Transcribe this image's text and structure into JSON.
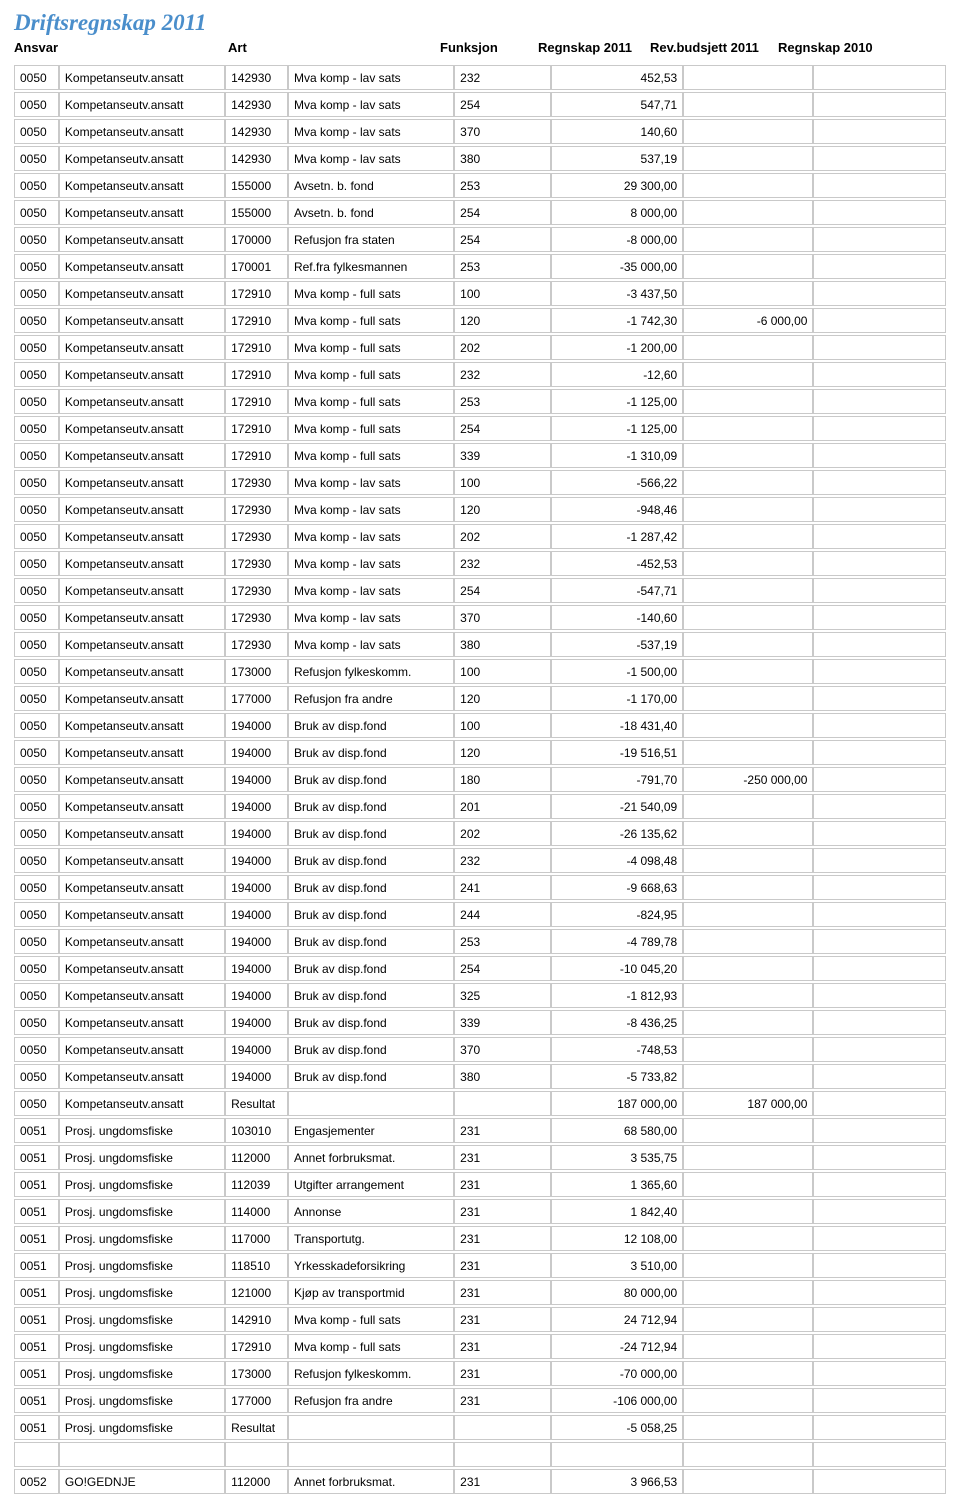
{
  "title": "Driftsregnskap 2011",
  "headers": {
    "ansvar": "Ansvar",
    "art": "Art",
    "funksjon": "Funksjon",
    "regnskap2011": "Regnskap 2011",
    "revbudsjett2011": "Rev.budsjett 2011",
    "regnskap2010": "Regnskap 2010"
  },
  "style": {
    "title_color": "#4a8ecb",
    "border_color": "#c9c9c9",
    "font_family": "Arial",
    "title_font_family": "Times New Roman",
    "title_fontsize": 23,
    "body_fontsize": 12
  },
  "columns": [
    "code",
    "ansvar",
    "art",
    "artdesc",
    "funk",
    "regnskap2011",
    "revbudsjett2011",
    "regnskap2010"
  ],
  "rows": [
    [
      "0050",
      "Kompetanseutv.ansatt",
      "142930",
      "Mva komp - lav sats",
      "232",
      "452,53",
      "",
      ""
    ],
    [
      "0050",
      "Kompetanseutv.ansatt",
      "142930",
      "Mva komp - lav sats",
      "254",
      "547,71",
      "",
      ""
    ],
    [
      "0050",
      "Kompetanseutv.ansatt",
      "142930",
      "Mva komp - lav sats",
      "370",
      "140,60",
      "",
      ""
    ],
    [
      "0050",
      "Kompetanseutv.ansatt",
      "142930",
      "Mva komp - lav sats",
      "380",
      "537,19",
      "",
      ""
    ],
    [
      "0050",
      "Kompetanseutv.ansatt",
      "155000",
      "Avsetn. b. fond",
      "253",
      "29 300,00",
      "",
      ""
    ],
    [
      "0050",
      "Kompetanseutv.ansatt",
      "155000",
      "Avsetn. b. fond",
      "254",
      "8 000,00",
      "",
      ""
    ],
    [
      "0050",
      "Kompetanseutv.ansatt",
      "170000",
      "Refusjon fra staten",
      "254",
      "-8 000,00",
      "",
      ""
    ],
    [
      "0050",
      "Kompetanseutv.ansatt",
      "170001",
      "Ref.fra fylkesmannen",
      "253",
      "-35 000,00",
      "",
      ""
    ],
    [
      "0050",
      "Kompetanseutv.ansatt",
      "172910",
      "Mva komp - full sats",
      "100",
      "-3 437,50",
      "",
      ""
    ],
    [
      "0050",
      "Kompetanseutv.ansatt",
      "172910",
      "Mva komp - full sats",
      "120",
      "-1 742,30",
      "-6 000,00",
      ""
    ],
    [
      "0050",
      "Kompetanseutv.ansatt",
      "172910",
      "Mva komp - full sats",
      "202",
      "-1 200,00",
      "",
      ""
    ],
    [
      "0050",
      "Kompetanseutv.ansatt",
      "172910",
      "Mva komp - full sats",
      "232",
      "-12,60",
      "",
      ""
    ],
    [
      "0050",
      "Kompetanseutv.ansatt",
      "172910",
      "Mva komp - full sats",
      "253",
      "-1 125,00",
      "",
      ""
    ],
    [
      "0050",
      "Kompetanseutv.ansatt",
      "172910",
      "Mva komp - full sats",
      "254",
      "-1 125,00",
      "",
      ""
    ],
    [
      "0050",
      "Kompetanseutv.ansatt",
      "172910",
      "Mva komp - full sats",
      "339",
      "-1 310,09",
      "",
      ""
    ],
    [
      "0050",
      "Kompetanseutv.ansatt",
      "172930",
      "Mva komp - lav sats",
      "100",
      "-566,22",
      "",
      ""
    ],
    [
      "0050",
      "Kompetanseutv.ansatt",
      "172930",
      "Mva komp - lav sats",
      "120",
      "-948,46",
      "",
      ""
    ],
    [
      "0050",
      "Kompetanseutv.ansatt",
      "172930",
      "Mva komp - lav sats",
      "202",
      "-1 287,42",
      "",
      ""
    ],
    [
      "0050",
      "Kompetanseutv.ansatt",
      "172930",
      "Mva komp - lav sats",
      "232",
      "-452,53",
      "",
      ""
    ],
    [
      "0050",
      "Kompetanseutv.ansatt",
      "172930",
      "Mva komp - lav sats",
      "254",
      "-547,71",
      "",
      ""
    ],
    [
      "0050",
      "Kompetanseutv.ansatt",
      "172930",
      "Mva komp - lav sats",
      "370",
      "-140,60",
      "",
      ""
    ],
    [
      "0050",
      "Kompetanseutv.ansatt",
      "172930",
      "Mva komp - lav sats",
      "380",
      "-537,19",
      "",
      ""
    ],
    [
      "0050",
      "Kompetanseutv.ansatt",
      "173000",
      "Refusjon fylkeskomm.",
      "100",
      "-1 500,00",
      "",
      ""
    ],
    [
      "0050",
      "Kompetanseutv.ansatt",
      "177000",
      "Refusjon fra andre",
      "120",
      "-1 170,00",
      "",
      ""
    ],
    [
      "0050",
      "Kompetanseutv.ansatt",
      "194000",
      "Bruk av disp.fond",
      "100",
      "-18 431,40",
      "",
      ""
    ],
    [
      "0050",
      "Kompetanseutv.ansatt",
      "194000",
      "Bruk av disp.fond",
      "120",
      "-19 516,51",
      "",
      ""
    ],
    [
      "0050",
      "Kompetanseutv.ansatt",
      "194000",
      "Bruk av disp.fond",
      "180",
      "-791,70",
      "-250 000,00",
      ""
    ],
    [
      "0050",
      "Kompetanseutv.ansatt",
      "194000",
      "Bruk av disp.fond",
      "201",
      "-21 540,09",
      "",
      ""
    ],
    [
      "0050",
      "Kompetanseutv.ansatt",
      "194000",
      "Bruk av disp.fond",
      "202",
      "-26 135,62",
      "",
      ""
    ],
    [
      "0050",
      "Kompetanseutv.ansatt",
      "194000",
      "Bruk av disp.fond",
      "232",
      "-4 098,48",
      "",
      ""
    ],
    [
      "0050",
      "Kompetanseutv.ansatt",
      "194000",
      "Bruk av disp.fond",
      "241",
      "-9 668,63",
      "",
      ""
    ],
    [
      "0050",
      "Kompetanseutv.ansatt",
      "194000",
      "Bruk av disp.fond",
      "244",
      "-824,95",
      "",
      ""
    ],
    [
      "0050",
      "Kompetanseutv.ansatt",
      "194000",
      "Bruk av disp.fond",
      "253",
      "-4 789,78",
      "",
      ""
    ],
    [
      "0050",
      "Kompetanseutv.ansatt",
      "194000",
      "Bruk av disp.fond",
      "254",
      "-10 045,20",
      "",
      ""
    ],
    [
      "0050",
      "Kompetanseutv.ansatt",
      "194000",
      "Bruk av disp.fond",
      "325",
      "-1 812,93",
      "",
      ""
    ],
    [
      "0050",
      "Kompetanseutv.ansatt",
      "194000",
      "Bruk av disp.fond",
      "339",
      "-8 436,25",
      "",
      ""
    ],
    [
      "0050",
      "Kompetanseutv.ansatt",
      "194000",
      "Bruk av disp.fond",
      "370",
      "-748,53",
      "",
      ""
    ],
    [
      "0050",
      "Kompetanseutv.ansatt",
      "194000",
      "Bruk av disp.fond",
      "380",
      "-5 733,82",
      "",
      ""
    ],
    [
      "0050",
      "Kompetanseutv.ansatt",
      "Resultat",
      "",
      "",
      "187 000,00",
      "187 000,00",
      ""
    ],
    [
      "0051",
      "Prosj. ungdomsfiske",
      "103010",
      "Engasjementer",
      "231",
      "68 580,00",
      "",
      ""
    ],
    [
      "0051",
      "Prosj. ungdomsfiske",
      "112000",
      "Annet forbruksmat.",
      "231",
      "3 535,75",
      "",
      ""
    ],
    [
      "0051",
      "Prosj. ungdomsfiske",
      "112039",
      "Utgifter arrangement",
      "231",
      "1 365,60",
      "",
      ""
    ],
    [
      "0051",
      "Prosj. ungdomsfiske",
      "114000",
      "Annonse",
      "231",
      "1 842,40",
      "",
      ""
    ],
    [
      "0051",
      "Prosj. ungdomsfiske",
      "117000",
      "Transportutg.",
      "231",
      "12 108,00",
      "",
      ""
    ],
    [
      "0051",
      "Prosj. ungdomsfiske",
      "118510",
      "Yrkesskadeforsikring",
      "231",
      "3 510,00",
      "",
      ""
    ],
    [
      "0051",
      "Prosj. ungdomsfiske",
      "121000",
      "Kjøp av transportmid",
      "231",
      "80 000,00",
      "",
      ""
    ],
    [
      "0051",
      "Prosj. ungdomsfiske",
      "142910",
      "Mva komp - full sats",
      "231",
      "24 712,94",
      "",
      ""
    ],
    [
      "0051",
      "Prosj. ungdomsfiske",
      "172910",
      "Mva komp - full sats",
      "231",
      "-24 712,94",
      "",
      ""
    ],
    [
      "0051",
      "Prosj. ungdomsfiske",
      "173000",
      "Refusjon fylkeskomm.",
      "231",
      "-70 000,00",
      "",
      ""
    ],
    [
      "0051",
      "Prosj. ungdomsfiske",
      "177000",
      "Refusjon fra andre",
      "231",
      "-106 000,00",
      "",
      ""
    ],
    [
      "0051",
      "Prosj. ungdomsfiske",
      "Resultat",
      "",
      "",
      "-5 058,25",
      "",
      ""
    ],
    [
      "",
      "",
      "",
      "",
      "",
      "",
      "",
      ""
    ],
    [
      "0052",
      "GO!GEDNJE",
      "112000",
      "Annet forbruksmat.",
      "231",
      "3 966,53",
      "",
      ""
    ]
  ]
}
